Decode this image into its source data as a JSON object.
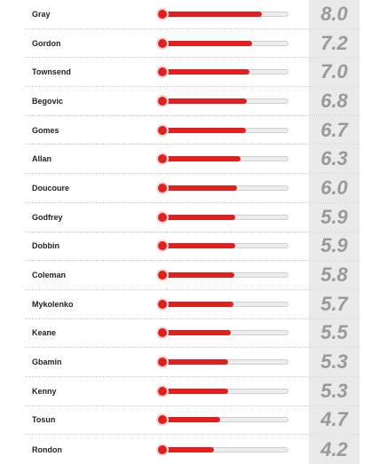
{
  "theme": {
    "accent": "#e01f1f",
    "score_color": "#999999",
    "score_bg": "#eaeaea"
  },
  "scale_max": 10,
  "players": [
    {
      "name": "Gray",
      "rating": "8.0",
      "value": 8.0
    },
    {
      "name": "Gordon",
      "rating": "7.2",
      "value": 7.2
    },
    {
      "name": "Townsend",
      "rating": "7.0",
      "value": 7.0
    },
    {
      "name": "Begovic",
      "rating": "6.8",
      "value": 6.8
    },
    {
      "name": "Gomes",
      "rating": "6.7",
      "value": 6.7
    },
    {
      "name": "Allan",
      "rating": "6.3",
      "value": 6.3
    },
    {
      "name": "Doucoure",
      "rating": "6.0",
      "value": 6.0
    },
    {
      "name": "Godfrey",
      "rating": "5.9",
      "value": 5.9
    },
    {
      "name": "Dobbin",
      "rating": "5.9",
      "value": 5.9
    },
    {
      "name": "Coleman",
      "rating": "5.8",
      "value": 5.8
    },
    {
      "name": "Mykolenko",
      "rating": "5.7",
      "value": 5.7
    },
    {
      "name": "Keane",
      "rating": "5.5",
      "value": 5.5
    },
    {
      "name": "Gbamin",
      "rating": "5.3",
      "value": 5.3
    },
    {
      "name": "Kenny",
      "rating": "5.3",
      "value": 5.3
    },
    {
      "name": "Tosun",
      "rating": "4.7",
      "value": 4.7
    },
    {
      "name": "Rondon",
      "rating": "4.2",
      "value": 4.2
    }
  ]
}
